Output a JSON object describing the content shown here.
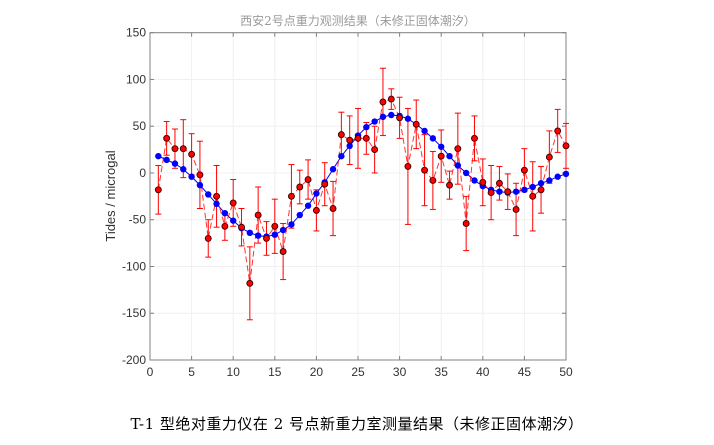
{
  "caption": "T-1 型绝对重力仪在 2 号点新重力室测量结果（未修正固体潮汐）",
  "chart_data": {
    "type": "scatter",
    "title": "西安2号点重力观测结果（未修正固体潮汐）",
    "xlabel": "",
    "ylabel": "Tides / microgal",
    "xlim": [
      0,
      50
    ],
    "ylim": [
      -200,
      150
    ],
    "xticks": [
      0,
      5,
      10,
      15,
      20,
      25,
      30,
      35,
      40,
      45,
      50
    ],
    "yticks": [
      -200,
      -150,
      -100,
      -50,
      0,
      50,
      100,
      150
    ],
    "grid": true,
    "colors": {
      "measured": "#ff0000",
      "tide": "#0000ff",
      "axis": "#808080"
    },
    "x": [
      1,
      2,
      3,
      4,
      5,
      6,
      7,
      8,
      9,
      10,
      11,
      12,
      13,
      14,
      15,
      16,
      17,
      18,
      19,
      20,
      21,
      22,
      23,
      24,
      25,
      26,
      27,
      28,
      29,
      30,
      31,
      32,
      33,
      34,
      35,
      36,
      37,
      38,
      39,
      40,
      41,
      42,
      43,
      44,
      45,
      46,
      47,
      48,
      49,
      50
    ],
    "series": [
      {
        "style": "red dashed line with dark-edged red circle markers and error bars",
        "values": [
          -18,
          37,
          26,
          26,
          20,
          -2,
          -70,
          -25,
          -57,
          -32,
          -58,
          -118,
          -45,
          -70,
          -57,
          -84,
          -25,
          -15,
          -7,
          -40,
          -12,
          -38,
          41,
          35,
          37,
          37,
          25,
          76,
          79,
          59,
          7,
          52,
          3,
          -8,
          18,
          -13,
          26,
          -54,
          37,
          -10,
          -21,
          -11,
          -20,
          -39,
          3,
          -25,
          -18,
          17,
          45,
          29
        ],
        "errors": [
          26,
          18,
          21,
          31,
          22,
          36,
          20,
          33,
          15,
          25,
          20,
          39,
          30,
          18,
          29,
          30,
          34,
          18,
          21,
          22,
          23,
          29,
          24,
          26,
          32,
          17,
          25,
          36,
          11,
          22,
          62,
          26,
          38,
          31,
          28,
          15,
          38,
          29,
          24,
          25,
          29,
          18,
          19,
          28,
          23,
          37,
          25,
          28,
          23,
          24
        ]
      },
      {
        "style": "blue solid line with blue circle markers",
        "values": [
          18,
          14,
          10,
          4,
          -4,
          -13,
          -23,
          -33,
          -43,
          -51,
          -59,
          -64,
          -67,
          -68,
          -66,
          -61,
          -55,
          -45,
          -35,
          -22,
          -10,
          4,
          18,
          29,
          40,
          49,
          55,
          60,
          62,
          61,
          58,
          52,
          45,
          37,
          28,
          18,
          8,
          0,
          -8,
          -14,
          -18,
          -20,
          -21,
          -20,
          -18,
          -15,
          -11,
          -8,
          -4,
          -1
        ]
      }
    ]
  }
}
